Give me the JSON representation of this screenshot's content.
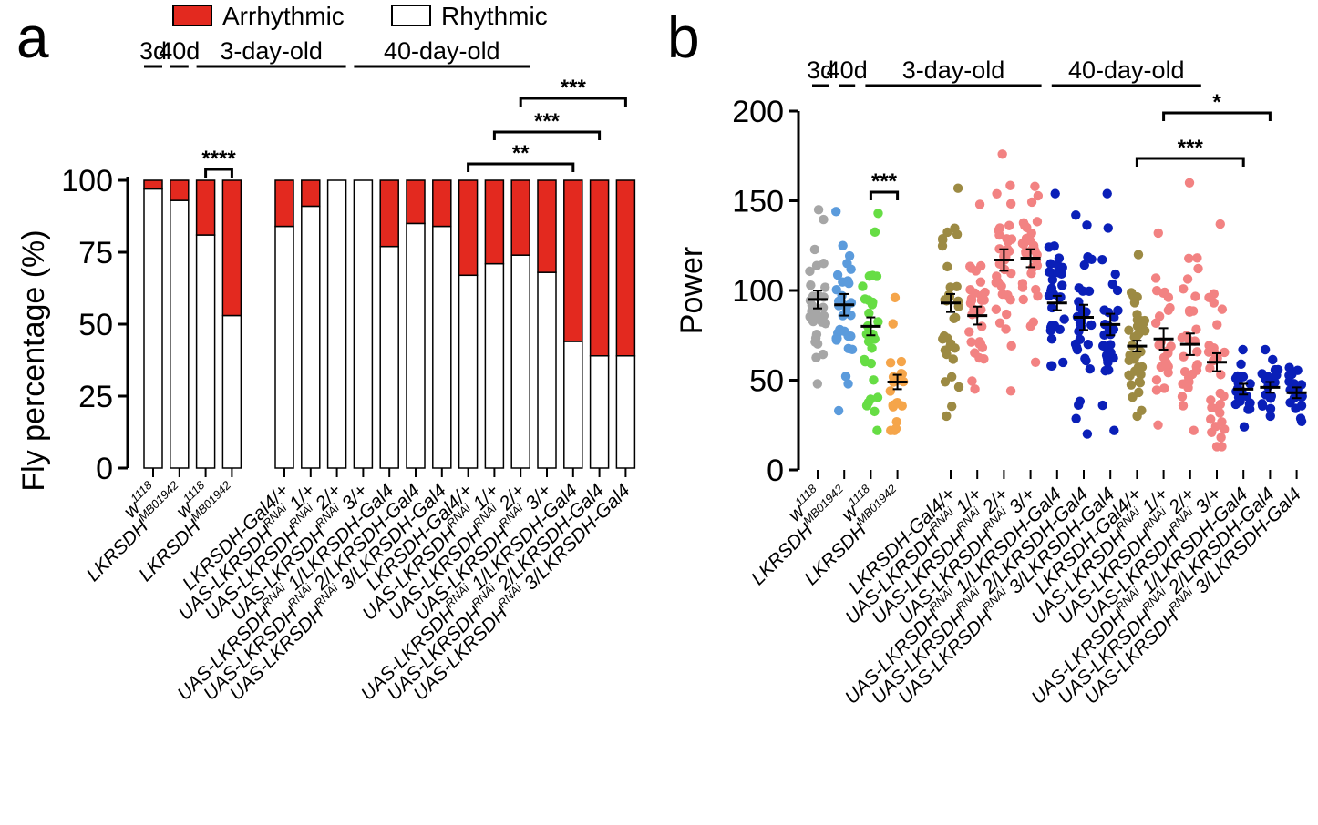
{
  "legend": {
    "arrhythmic": "Arrhythmic",
    "rhythmic": "Rhythmic",
    "arrhythmic_color": "#e3291f",
    "rhythmic_color": "#ffffff"
  },
  "chart_data": [
    {
      "panel": "a",
      "type": "bar",
      "stacked": true,
      "ylabel": "Fly percentage (%)",
      "ylim": [
        0,
        100
      ],
      "yticks": [
        "0",
        "25",
        "50",
        "75",
        "100"
      ],
      "group_labels": [
        {
          "label": "3d",
          "from": 0,
          "to": 0
        },
        {
          "label": "40d",
          "from": 1,
          "to": 1
        },
        {
          "label": "3-day-old",
          "from": 2,
          "to": 6
        },
        {
          "label": "40-day-old",
          "from": 7,
          "to": 13
        }
      ],
      "bars": [
        {
          "pre": "w",
          "sup": "1118",
          "post": "",
          "rhythmic": 97,
          "arrhythmic": 3,
          "slot": 0
        },
        {
          "pre": "LKRSDH",
          "sup": "MB01942",
          "post": "",
          "rhythmic": 93,
          "arrhythmic": 7,
          "slot": 1
        },
        {
          "pre": "w",
          "sup": "1118",
          "post": "",
          "rhythmic": 81,
          "arrhythmic": 19,
          "slot": 2
        },
        {
          "pre": "LKRSDH",
          "sup": "MB01942",
          "post": "",
          "rhythmic": 53,
          "arrhythmic": 47,
          "slot": 3
        },
        {
          "pre": "LKRSDH-Gal4/+",
          "sup": "",
          "post": "",
          "rhythmic": 84,
          "arrhythmic": 16,
          "slot": 5
        },
        {
          "pre": "UAS-LKRSDH",
          "sup": "RNAi",
          "post": " 1/+",
          "rhythmic": 91,
          "arrhythmic": 9,
          "slot": 6
        },
        {
          "pre": "UAS-LKRSDH",
          "sup": "RNAi",
          "post": " 2/+",
          "rhythmic": 100,
          "arrhythmic": 0,
          "slot": 7
        },
        {
          "pre": "UAS-LKRSDH",
          "sup": "RNAi",
          "post": " 3/+",
          "rhythmic": 100,
          "arrhythmic": 0,
          "slot": 8
        },
        {
          "pre": "UAS-LKRSDH",
          "sup": "RNAi",
          "post": " 1/LKRSDH-Gal4",
          "rhythmic": 77,
          "arrhythmic": 23,
          "slot": 9
        },
        {
          "pre": "UAS-LKRSDH",
          "sup": "RNAi",
          "post": " 2/LKRSDH-Gal4",
          "rhythmic": 85,
          "arrhythmic": 15,
          "slot": 10
        },
        {
          "pre": "UAS-LKRSDH",
          "sup": "RNAi",
          "post": " 3/LKRSDH-Gal4",
          "rhythmic": 84,
          "arrhythmic": 16,
          "slot": 11
        },
        {
          "pre": "LKRSDH-Gal4/+",
          "sup": "",
          "post": "",
          "rhythmic": 67,
          "arrhythmic": 33,
          "slot": 12
        },
        {
          "pre": "UAS-LKRSDH",
          "sup": "RNAi",
          "post": " 1/+",
          "rhythmic": 71,
          "arrhythmic": 29,
          "slot": 13
        },
        {
          "pre": "UAS-LKRSDH",
          "sup": "RNAi",
          "post": " 2/+",
          "rhythmic": 74,
          "arrhythmic": 26,
          "slot": 14
        },
        {
          "pre": "UAS-LKRSDH",
          "sup": "RNAi",
          "post": " 3/+",
          "rhythmic": 68,
          "arrhythmic": 32,
          "slot": 15
        },
        {
          "pre": "UAS-LKRSDH",
          "sup": "RNAi",
          "post": " 1/LKRSDH-Gal4",
          "rhythmic": 44,
          "arrhythmic": 56,
          "slot": 16
        },
        {
          "pre": "UAS-LKRSDH",
          "sup": "RNAi",
          "post": " 2/LKRSDH-Gal4",
          "rhythmic": 39,
          "arrhythmic": 61,
          "slot": 17
        },
        {
          "pre": "UAS-LKRSDH",
          "sup": "RNAi",
          "post": " 3/LKRSDH-Gal4",
          "rhythmic": 39,
          "arrhythmic": 61,
          "slot": 18
        }
      ],
      "significance": [
        {
          "label": "****",
          "a": 2,
          "b": 3
        },
        {
          "label": "**",
          "a": 11,
          "b": 15
        },
        {
          "label": "***",
          "a": 12,
          "b": 16
        },
        {
          "label": "***",
          "a": 13,
          "b": 17
        }
      ]
    },
    {
      "panel": "b",
      "type": "scatter",
      "ylabel": "Power",
      "ylim": [
        0,
        200
      ],
      "yticks": [
        "0",
        "50",
        "100",
        "150",
        "200"
      ],
      "group_labels": [
        {
          "label": "3d",
          "from": 0,
          "to": 0
        },
        {
          "label": "40d",
          "from": 1,
          "to": 1
        },
        {
          "label": "3-day-old",
          "from": 2,
          "to": 7
        },
        {
          "label": "40-day-old",
          "from": 8,
          "to": 13
        }
      ],
      "groups": [
        {
          "pre": "w",
          "sup": "1118",
          "post": "",
          "color": "#a6a6a6",
          "mean": 95,
          "sem": 5,
          "min": 48,
          "max": 145,
          "n": 34
        },
        {
          "pre": "LKRSDH",
          "sup": "MB01942",
          "post": "",
          "color": "#5b9bdc",
          "mean": 92,
          "sem": 6,
          "min": 33,
          "max": 144,
          "n": 32
        },
        {
          "pre": "w",
          "sup": "1118",
          "post": "",
          "color": "#66dd44",
          "mean": 80,
          "sem": 5,
          "min": 22,
          "max": 143,
          "n": 30
        },
        {
          "pre": "LKRSDH",
          "sup": "MB01942",
          "post": "",
          "color": "#f5a54a",
          "mean": 49,
          "sem": 4,
          "min": 22,
          "max": 96,
          "n": 22
        },
        {
          "pre": "LKRSDH-Gal4/+",
          "sup": "",
          "post": "",
          "color": "#9c8a43",
          "mean": 93,
          "sem": 5,
          "min": 30,
          "max": 157,
          "n": 32
        },
        {
          "pre": "UAS-LKRSDH",
          "sup": "RNAi",
          "post": " 1/+",
          "color": "#f28282",
          "mean": 86,
          "sem": 5,
          "min": 45,
          "max": 148,
          "n": 32
        },
        {
          "pre": "UAS-LKRSDH",
          "sup": "RNAi",
          "post": " 2/+",
          "color": "#f28282",
          "mean": 117,
          "sem": 6,
          "min": 44,
          "max": 176,
          "n": 34
        },
        {
          "pre": "UAS-LKRSDH",
          "sup": "RNAi",
          "post": " 3/+",
          "color": "#f28282",
          "mean": 118,
          "sem": 5,
          "min": 60,
          "max": 158,
          "n": 32
        },
        {
          "pre": "UAS-LKRSDH",
          "sup": "RNAi",
          "post": " 1/LKRSDH-Gal4",
          "color": "#0a1fb8",
          "mean": 93,
          "sem": 4,
          "min": 58,
          "max": 154,
          "n": 30
        },
        {
          "pre": "UAS-LKRSDH",
          "sup": "RNAi",
          "post": " 2/LKRSDH-Gal4",
          "color": "#0a1fb8",
          "mean": 85,
          "sem": 7,
          "min": 20,
          "max": 142,
          "n": 30
        },
        {
          "pre": "UAS-LKRSDH",
          "sup": "RNAi",
          "post": " 3/LKRSDH-Gal4",
          "color": "#0a1fb8",
          "mean": 81,
          "sem": 6,
          "min": 22,
          "max": 154,
          "n": 30
        },
        {
          "pre": "LKRSDH-Gal4/+",
          "sup": "",
          "post": "",
          "color": "#9c8a43",
          "mean": 69,
          "sem": 3,
          "min": 30,
          "max": 120,
          "n": 36
        },
        {
          "pre": "UAS-LKRSDH",
          "sup": "RNAi",
          "post": " 1/+",
          "color": "#f28282",
          "mean": 73,
          "sem": 6,
          "min": 25,
          "max": 132,
          "n": 24
        },
        {
          "pre": "UAS-LKRSDH",
          "sup": "RNAi",
          "post": " 2/+",
          "color": "#f28282",
          "mean": 70,
          "sem": 6,
          "min": 22,
          "max": 160,
          "n": 30
        },
        {
          "pre": "UAS-LKRSDH",
          "sup": "RNAi",
          "post": " 3/+",
          "color": "#f28282",
          "mean": 60,
          "sem": 5,
          "min": 13,
          "max": 137,
          "n": 32
        },
        {
          "pre": "UAS-LKRSDH",
          "sup": "RNAi",
          "post": " 1/LKRSDH-Gal4",
          "color": "#0a1fb8",
          "mean": 45,
          "sem": 3,
          "min": 24,
          "max": 67,
          "n": 22
        },
        {
          "pre": "UAS-LKRSDH",
          "sup": "RNAi",
          "post": " 2/LKRSDH-Gal4",
          "color": "#0a1fb8",
          "mean": 46,
          "sem": 3,
          "min": 30,
          "max": 67,
          "n": 22
        },
        {
          "pre": "UAS-LKRSDH",
          "sup": "RNAi",
          "post": " 3/LKRSDH-Gal4",
          "color": "#0a1fb8",
          "mean": 43,
          "sem": 3,
          "min": 27,
          "max": 57,
          "n": 22
        }
      ],
      "significance": [
        {
          "label": "***",
          "a": 2,
          "b": 3
        },
        {
          "label": "***",
          "a": 11,
          "b": 15
        },
        {
          "label": "*",
          "a": 12,
          "b": 16
        }
      ]
    }
  ]
}
